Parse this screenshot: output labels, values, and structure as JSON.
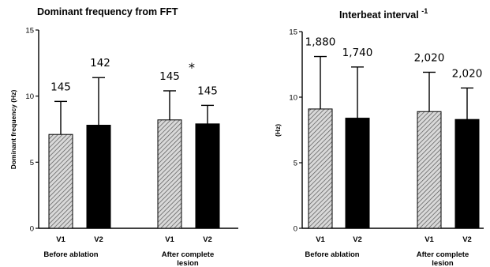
{
  "chart_data": [
    {
      "type": "bar",
      "title": "Dominant frequency from FFT",
      "ylabel": "Dominant frequency (Hz)",
      "ylim": [
        0,
        15
      ],
      "yticks": [
        "0",
        "5",
        "10",
        "15"
      ],
      "groups": [
        "Before ablation",
        "After complete lesion"
      ],
      "categories": [
        "V1",
        "V2",
        "V1",
        "V2"
      ],
      "values": [
        7.1,
        7.8,
        8.2,
        7.9
      ],
      "errors": [
        2.5,
        3.6,
        2.2,
        1.4
      ],
      "data_labels": [
        "145",
        "142",
        "145",
        "145"
      ],
      "annotation": "*",
      "fills": [
        "hatched",
        "#000000",
        "hatched",
        "#000000"
      ]
    },
    {
      "type": "bar",
      "title": "Interbeat interval",
      "title_superscript": "-1",
      "ylabel": "(Hz)",
      "ylim": [
        0,
        15
      ],
      "yticks": [
        "0",
        "5",
        "10",
        "15"
      ],
      "groups": [
        "Before ablation",
        "After complete lesion"
      ],
      "categories": [
        "V1",
        "V2",
        "V1",
        "V2"
      ],
      "values": [
        9.1,
        8.4,
        8.9,
        8.3
      ],
      "errors": [
        4.0,
        3.9,
        3.0,
        2.4
      ],
      "data_labels": [
        "1,880",
        "1,740",
        "2,020",
        "2,020"
      ],
      "fills": [
        "hatched",
        "#000000",
        "hatched",
        "#000000"
      ]
    }
  ]
}
